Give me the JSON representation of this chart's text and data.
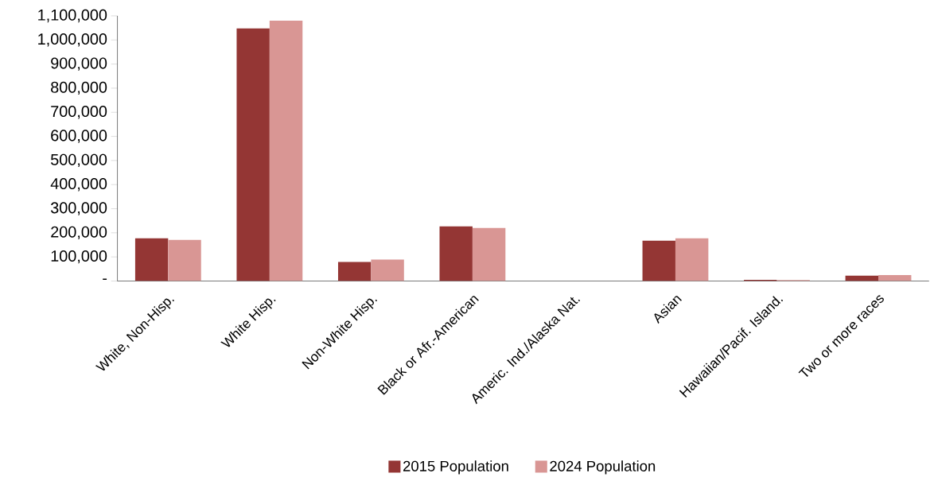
{
  "chart_data": {
    "type": "bar",
    "categories": [
      "White, Non-Hisp.",
      "White Hisp.",
      "Non-White Hisp.",
      "Black or Afr.-American",
      "Americ. Ind./Alaska Nat.",
      "Asian",
      "Hawaiian/Pacif. Island.",
      "Two or more races"
    ],
    "series": [
      {
        "name": "2015 Population",
        "color": "#943634",
        "values": [
          177000,
          1048000,
          79000,
          227000,
          null,
          167000,
          5000,
          22000
        ]
      },
      {
        "name": "2024 Population",
        "color": "#d99694",
        "values": [
          171000,
          1080000,
          89000,
          220000,
          null,
          177000,
          4000,
          25000
        ]
      }
    ],
    "ylim": [
      0,
      1100000
    ],
    "yticks": [
      {
        "value": 0,
        "label": "-"
      },
      {
        "value": 100000,
        "label": "100,000"
      },
      {
        "value": 200000,
        "label": "200,000"
      },
      {
        "value": 300000,
        "label": "300,000"
      },
      {
        "value": 400000,
        "label": "400,000"
      },
      {
        "value": 500000,
        "label": "500,000"
      },
      {
        "value": 600000,
        "label": "600,000"
      },
      {
        "value": 700000,
        "label": "700,000"
      },
      {
        "value": 800000,
        "label": "800,000"
      },
      {
        "value": 900000,
        "label": "900,000"
      },
      {
        "value": 1000000,
        "label": "1,000,000"
      },
      {
        "value": 1100000,
        "label": "1,100,000"
      }
    ],
    "grid": false,
    "legend": "bottom"
  }
}
